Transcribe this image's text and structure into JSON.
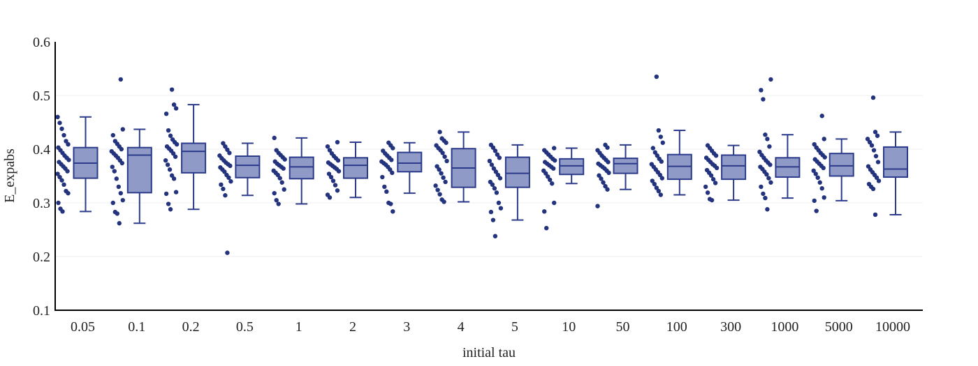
{
  "chart_data": {
    "type": "box",
    "xlabel": "initial tau",
    "ylabel": "E_expabs",
    "ylim": [
      0.1,
      0.6
    ],
    "yticks": [
      "0.1",
      "0.2",
      "0.3",
      "0.4",
      "0.5",
      "0.6"
    ],
    "grid": "horizontal",
    "show_points": "all (jittered strip beside each box)",
    "colors": {
      "box_stroke": "#2b3a8a",
      "box_fill": "#8f9bc6",
      "points": "#23337d",
      "grid": "#efefef",
      "axis": "#000000"
    },
    "categories": [
      "0.05",
      "0.1",
      "0.2",
      "0.5",
      "1",
      "2",
      "3",
      "4",
      "5",
      "10",
      "50",
      "100",
      "300",
      "1000",
      "5000",
      "10000"
    ],
    "boxes": [
      {
        "category": "0.05",
        "min": 0.284,
        "q1": 0.346,
        "median": 0.374,
        "q3": 0.403,
        "max": 0.46
      },
      {
        "category": "0.1",
        "min": 0.262,
        "q1": 0.319,
        "median": 0.389,
        "q3": 0.403,
        "max": 0.437
      },
      {
        "category": "0.2",
        "min": 0.288,
        "q1": 0.356,
        "median": 0.396,
        "q3": 0.411,
        "max": 0.483
      },
      {
        "category": "0.5",
        "min": 0.314,
        "q1": 0.347,
        "median": 0.37,
        "q3": 0.387,
        "max": 0.411
      },
      {
        "category": "1",
        "min": 0.298,
        "q1": 0.345,
        "median": 0.367,
        "q3": 0.385,
        "max": 0.421
      },
      {
        "category": "2",
        "min": 0.31,
        "q1": 0.346,
        "median": 0.37,
        "q3": 0.384,
        "max": 0.413
      },
      {
        "category": "3",
        "min": 0.318,
        "q1": 0.358,
        "median": 0.374,
        "q3": 0.394,
        "max": 0.412
      },
      {
        "category": "4",
        "min": 0.302,
        "q1": 0.329,
        "median": 0.365,
        "q3": 0.401,
        "max": 0.432
      },
      {
        "category": "5",
        "min": 0.268,
        "q1": 0.329,
        "median": 0.355,
        "q3": 0.385,
        "max": 0.408
      },
      {
        "category": "10",
        "min": 0.336,
        "q1": 0.353,
        "median": 0.369,
        "q3": 0.382,
        "max": 0.402
      },
      {
        "category": "50",
        "min": 0.325,
        "q1": 0.355,
        "median": 0.373,
        "q3": 0.383,
        "max": 0.408
      },
      {
        "category": "100",
        "min": 0.315,
        "q1": 0.344,
        "median": 0.368,
        "q3": 0.39,
        "max": 0.435
      },
      {
        "category": "300",
        "min": 0.305,
        "q1": 0.344,
        "median": 0.369,
        "q3": 0.389,
        "max": 0.407
      },
      {
        "category": "1000",
        "min": 0.309,
        "q1": 0.348,
        "median": 0.367,
        "q3": 0.384,
        "max": 0.427
      },
      {
        "category": "5000",
        "min": 0.304,
        "q1": 0.35,
        "median": 0.369,
        "q3": 0.392,
        "max": 0.419
      },
      {
        "category": "10000",
        "min": 0.278,
        "q1": 0.348,
        "median": 0.363,
        "q3": 0.404,
        "max": 0.432
      }
    ],
    "points": [
      [
        0.46,
        0.449,
        0.438,
        0.426,
        0.415,
        0.409,
        0.403,
        0.398,
        0.393,
        0.388,
        0.384,
        0.38,
        0.376,
        0.372,
        0.368,
        0.364,
        0.359,
        0.354,
        0.348,
        0.342,
        0.334,
        0.322,
        0.318,
        0.3,
        0.289,
        0.284
      ],
      [
        0.53,
        0.437,
        0.426,
        0.415,
        0.41,
        0.405,
        0.4,
        0.396,
        0.392,
        0.388,
        0.384,
        0.379,
        0.374,
        0.367,
        0.359,
        0.345,
        0.33,
        0.318,
        0.305,
        0.3,
        0.283,
        0.28,
        0.262
      ],
      [
        0.511,
        0.483,
        0.476,
        0.466,
        0.435,
        0.425,
        0.418,
        0.413,
        0.409,
        0.405,
        0.401,
        0.397,
        0.392,
        0.386,
        0.379,
        0.371,
        0.362,
        0.351,
        0.345,
        0.32,
        0.317,
        0.298,
        0.288
      ],
      [
        0.411,
        0.405,
        0.399,
        0.393,
        0.388,
        0.383,
        0.379,
        0.375,
        0.372,
        0.369,
        0.366,
        0.362,
        0.358,
        0.352,
        0.347,
        0.34,
        0.334,
        0.326,
        0.314,
        0.207
      ],
      [
        0.421,
        0.398,
        0.393,
        0.389,
        0.385,
        0.381,
        0.377,
        0.373,
        0.37,
        0.367,
        0.364,
        0.36,
        0.356,
        0.352,
        0.346,
        0.338,
        0.325,
        0.318,
        0.305,
        0.298
      ],
      [
        0.413,
        0.405,
        0.398,
        0.392,
        0.387,
        0.383,
        0.379,
        0.375,
        0.372,
        0.369,
        0.366,
        0.363,
        0.359,
        0.354,
        0.348,
        0.341,
        0.333,
        0.323,
        0.315,
        0.31
      ],
      [
        0.412,
        0.407,
        0.402,
        0.397,
        0.392,
        0.388,
        0.384,
        0.38,
        0.377,
        0.374,
        0.371,
        0.367,
        0.362,
        0.356,
        0.348,
        0.33,
        0.321,
        0.3,
        0.298,
        0.284
      ],
      [
        0.432,
        0.42,
        0.416,
        0.412,
        0.407,
        0.402,
        0.398,
        0.393,
        0.386,
        0.378,
        0.368,
        0.362,
        0.355,
        0.347,
        0.339,
        0.332,
        0.324,
        0.316,
        0.306,
        0.302
      ],
      [
        0.408,
        0.403,
        0.397,
        0.39,
        0.384,
        0.378,
        0.371,
        0.364,
        0.358,
        0.352,
        0.346,
        0.339,
        0.334,
        0.327,
        0.319,
        0.3,
        0.29,
        0.283,
        0.268,
        0.238
      ],
      [
        0.402,
        0.398,
        0.394,
        0.39,
        0.386,
        0.382,
        0.379,
        0.376,
        0.373,
        0.37,
        0.367,
        0.364,
        0.36,
        0.355,
        0.349,
        0.343,
        0.336,
        0.3,
        0.284,
        0.253
      ],
      [
        0.408,
        0.403,
        0.398,
        0.393,
        0.388,
        0.384,
        0.38,
        0.376,
        0.373,
        0.37,
        0.367,
        0.364,
        0.36,
        0.356,
        0.351,
        0.345,
        0.338,
        0.331,
        0.325,
        0.294
      ],
      [
        0.535,
        0.435,
        0.423,
        0.412,
        0.402,
        0.394,
        0.388,
        0.382,
        0.377,
        0.372,
        0.367,
        0.362,
        0.357,
        0.352,
        0.346,
        0.341,
        0.335,
        0.328,
        0.322,
        0.315
      ],
      [
        0.407,
        0.402,
        0.397,
        0.392,
        0.388,
        0.384,
        0.38,
        0.376,
        0.372,
        0.369,
        0.365,
        0.361,
        0.356,
        0.351,
        0.344,
        0.337,
        0.33,
        0.319,
        0.307,
        0.305
      ],
      [
        0.53,
        0.51,
        0.493,
        0.427,
        0.419,
        0.405,
        0.395,
        0.389,
        0.384,
        0.379,
        0.375,
        0.371,
        0.367,
        0.363,
        0.358,
        0.353,
        0.346,
        0.338,
        0.33,
        0.317,
        0.309,
        0.288
      ],
      [
        0.462,
        0.419,
        0.409,
        0.403,
        0.398,
        0.393,
        0.389,
        0.385,
        0.381,
        0.377,
        0.373,
        0.369,
        0.365,
        0.36,
        0.354,
        0.347,
        0.338,
        0.327,
        0.31,
        0.304,
        0.285
      ],
      [
        0.496,
        0.432,
        0.425,
        0.419,
        0.413,
        0.407,
        0.398,
        0.387,
        0.376,
        0.368,
        0.362,
        0.357,
        0.352,
        0.347,
        0.341,
        0.335,
        0.33,
        0.326,
        0.278
      ]
    ]
  }
}
